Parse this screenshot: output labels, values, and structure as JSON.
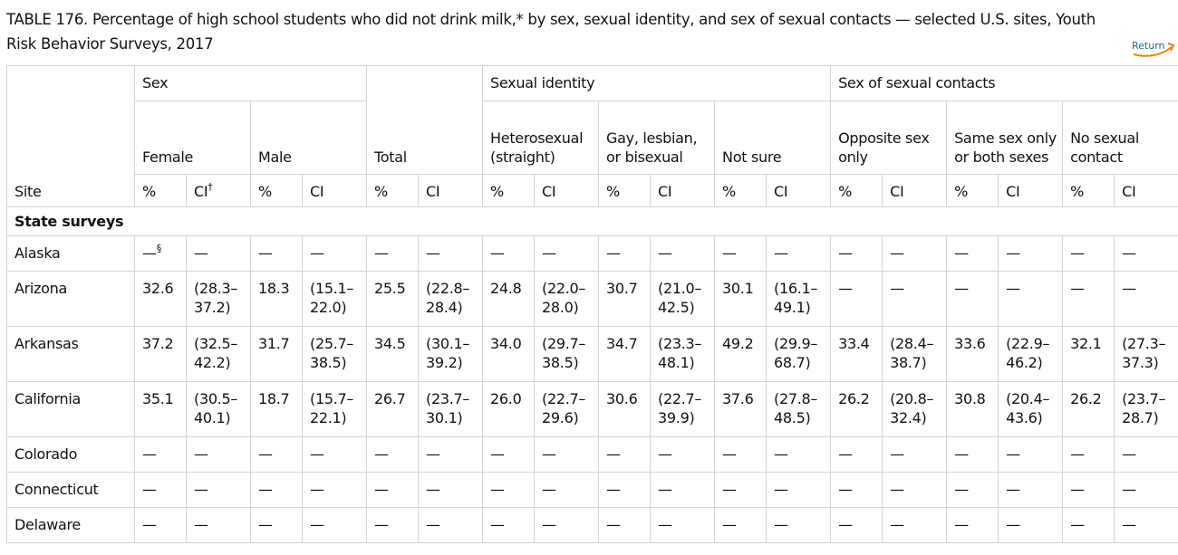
{
  "title": "TABLE 176. Percentage of high school students who did not drink milk,* by sex, sexual identity, and sex of sexual contacts — selected U.S. sites, Youth Risk Behavior Surveys, 2017",
  "return_label": "Return",
  "table": {
    "site_header": "Site",
    "groups": [
      "Sex",
      "Total",
      "Sexual identity",
      "Sex of sexual contacts"
    ],
    "subgroups": [
      "Female",
      "Male",
      "Heterosexual (straight)",
      "Gay, lesbian, or bisexual",
      "Not sure",
      "Opposite sex only",
      "Same sex only or both sexes",
      "No sexual contact"
    ],
    "col_headers": [
      {
        "text": "%"
      },
      {
        "text": "CI",
        "sup": "†"
      },
      {
        "text": "%"
      },
      {
        "text": "CI"
      },
      {
        "text": "%"
      },
      {
        "text": "CI"
      },
      {
        "text": "%"
      },
      {
        "text": "CI"
      },
      {
        "text": "%"
      },
      {
        "text": "CI"
      },
      {
        "text": "%"
      },
      {
        "text": "CI"
      },
      {
        "text": "%"
      },
      {
        "text": "CI"
      },
      {
        "text": "%"
      },
      {
        "text": "CI"
      },
      {
        "text": "%"
      },
      {
        "text": "CI"
      }
    ],
    "section": "State surveys",
    "rows": [
      {
        "site": "Alaska",
        "cells": [
          {
            "text": "—",
            "sup": "§"
          },
          "—",
          "—",
          "—",
          "—",
          "—",
          "—",
          "—",
          "—",
          "—",
          "—",
          "—",
          "—",
          "—",
          "—",
          "—",
          "—",
          "—"
        ]
      },
      {
        "site": "Arizona",
        "cells": [
          "32.6",
          "(28.3–37.2)",
          "18.3",
          "(15.1–22.0)",
          "25.5",
          "(22.8–28.4)",
          "24.8",
          "(22.0–28.0)",
          "30.7",
          "(21.0–42.5)",
          "30.1",
          "(16.1–49.1)",
          "—",
          "—",
          "—",
          "—",
          "—",
          "—"
        ]
      },
      {
        "site": "Arkansas",
        "cells": [
          "37.2",
          "(32.5–42.2)",
          "31.7",
          "(25.7–38.5)",
          "34.5",
          "(30.1–39.2)",
          "34.0",
          "(29.7–38.5)",
          "34.7",
          "(23.3–48.1)",
          "49.2",
          "(29.9–68.7)",
          "33.4",
          "(28.4–38.7)",
          "33.6",
          "(22.9–46.2)",
          "32.1",
          "(27.3–37.3)"
        ]
      },
      {
        "site": "California",
        "cells": [
          "35.1",
          "(30.5–40.1)",
          "18.7",
          "(15.7–22.1)",
          "26.7",
          "(23.7–30.1)",
          "26.0",
          "(22.7–29.6)",
          "30.6",
          "(22.7–39.9)",
          "37.6",
          "(27.8–48.5)",
          "26.2",
          "(20.8–32.4)",
          "30.8",
          "(20.4–43.6)",
          "26.2",
          "(23.7–28.7)"
        ]
      },
      {
        "site": "Colorado",
        "cells": [
          "—",
          "—",
          "—",
          "—",
          "—",
          "—",
          "—",
          "—",
          "—",
          "—",
          "—",
          "—",
          "—",
          "—",
          "—",
          "—",
          "—",
          "—"
        ]
      },
      {
        "site": "Connecticut",
        "cells": [
          "—",
          "—",
          "—",
          "—",
          "—",
          "—",
          "—",
          "—",
          "—",
          "—",
          "—",
          "—",
          "—",
          "—",
          "—",
          "—",
          "—",
          "—"
        ]
      },
      {
        "site": "Delaware",
        "cells": [
          "—",
          "—",
          "—",
          "—",
          "—",
          "—",
          "—",
          "—",
          "—",
          "—",
          "—",
          "—",
          "—",
          "—",
          "—",
          "—",
          "—",
          "—"
        ]
      }
    ]
  }
}
